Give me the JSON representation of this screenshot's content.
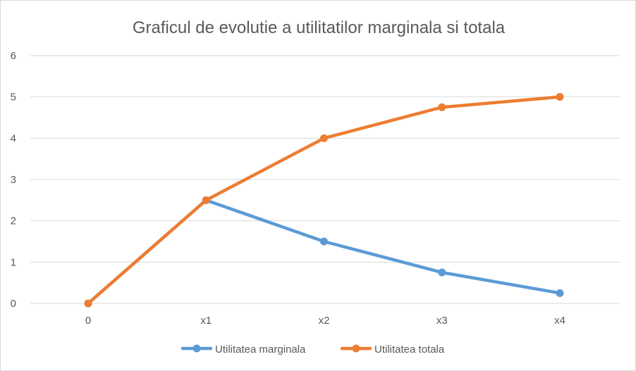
{
  "chart_data": {
    "type": "line",
    "title": "Graficul de evolutie a utilitatilor marginala si totala",
    "categories": [
      "0",
      "x1",
      "x2",
      "x3",
      "x4"
    ],
    "ylim": [
      0,
      6
    ],
    "yticks": [
      0,
      1,
      2,
      3,
      4,
      5,
      6
    ],
    "grid": true,
    "legend": "bottom",
    "series": [
      {
        "name": "Utilitatea marginala",
        "color": "#5b9bd5",
        "values": [
          0,
          2.5,
          1.5,
          0.75,
          0.25
        ]
      },
      {
        "name": "Utilitatea totala",
        "color": "#ed7d31",
        "values": [
          0,
          2.5,
          4,
          4.75,
          5
        ]
      }
    ]
  }
}
